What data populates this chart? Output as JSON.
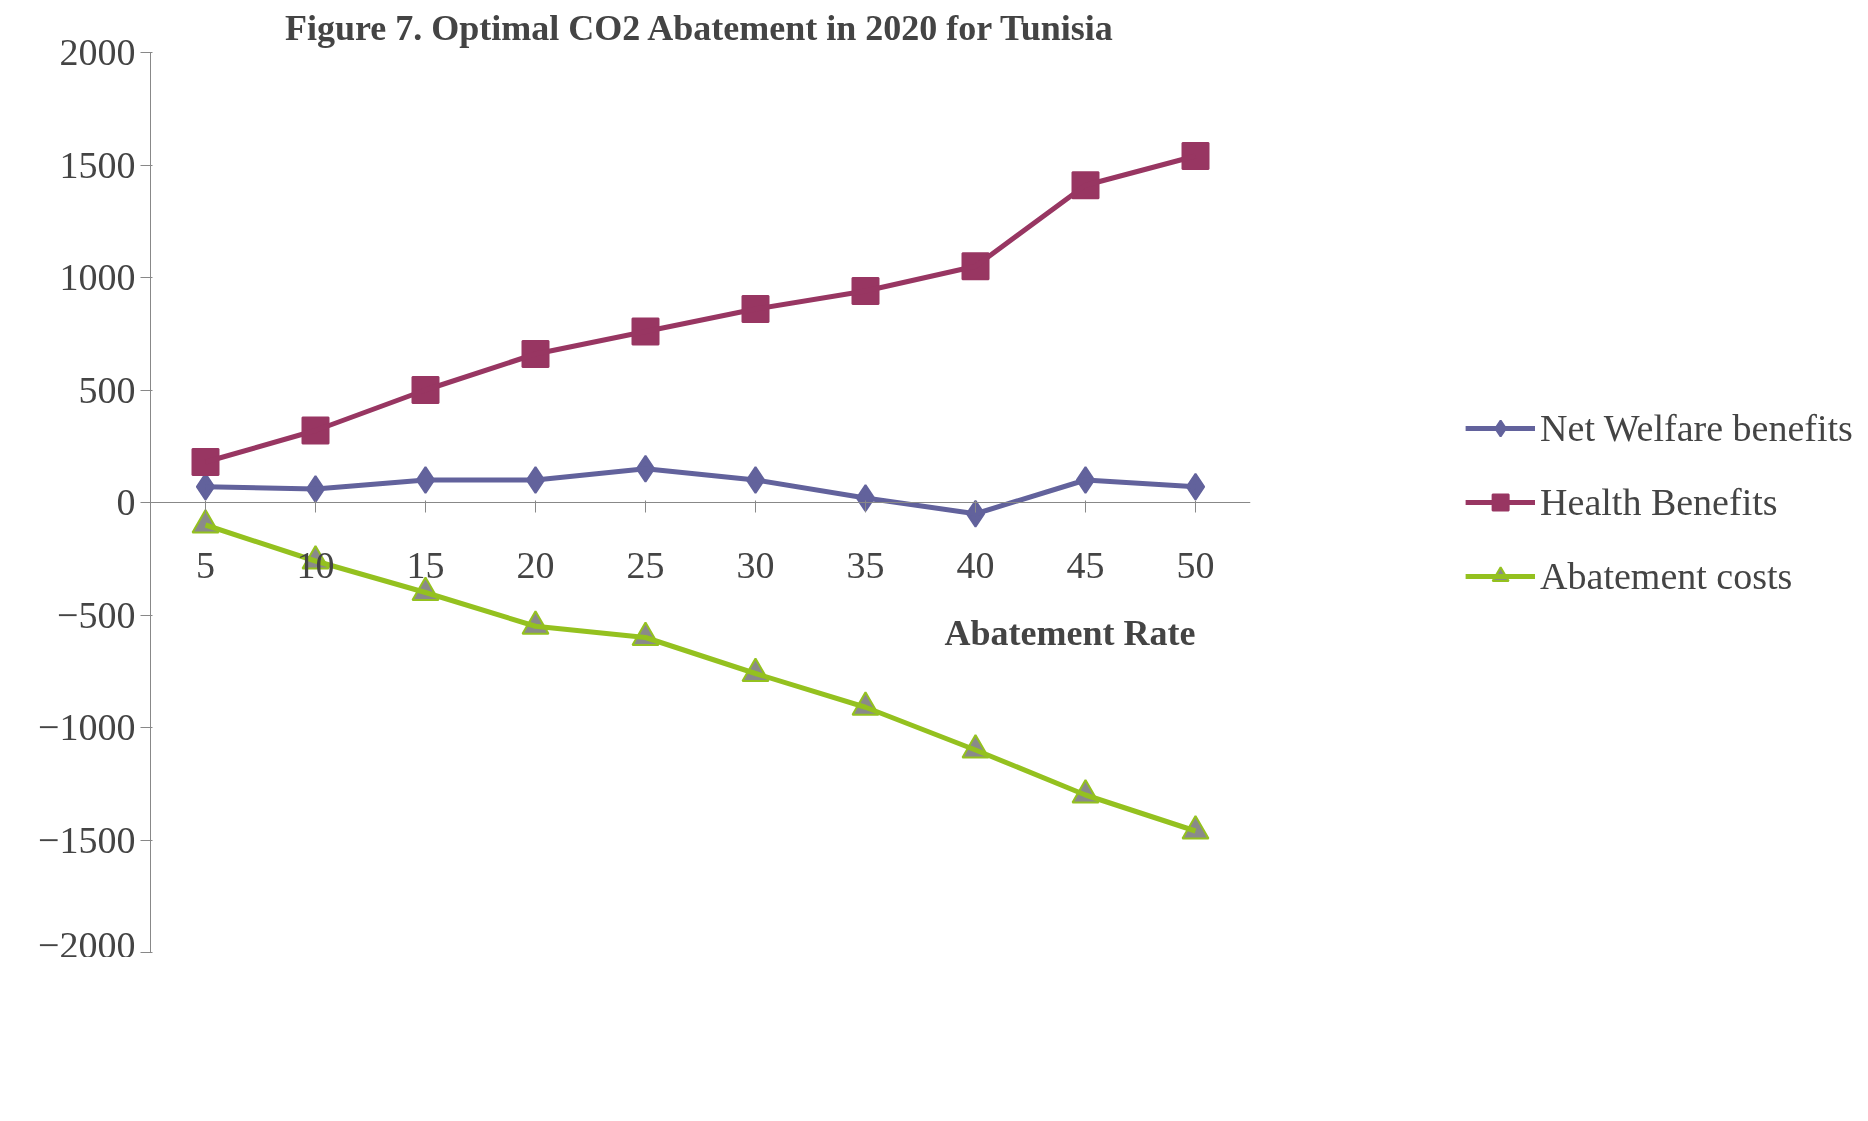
{
  "chart_data": {
    "type": "line",
    "title": "Figure 7. Optimal CO2 Abatement in 2020 for Tunisia",
    "xlabel": "Abatement Rate",
    "categories": [
      "5",
      "10",
      "15",
      "20",
      "25",
      "30",
      "35",
      "40",
      "45",
      "50"
    ],
    "series": [
      {
        "name": "Net Welfare benefits",
        "color": "#62629c",
        "marker": "diamond",
        "values": [
          70,
          60,
          100,
          100,
          150,
          100,
          20,
          -50,
          100,
          70
        ]
      },
      {
        "name": "Health Benefits",
        "color": "#983662",
        "marker": "square",
        "values": [
          180,
          320,
          500,
          660,
          760,
          860,
          940,
          1050,
          1410,
          1540
        ]
      },
      {
        "name": "Abatement costs",
        "color": "#94c11f",
        "marker": "triangle",
        "values": [
          -100,
          -260,
          -400,
          -550,
          -600,
          -760,
          -910,
          -1100,
          -1300,
          -1460
        ]
      }
    ],
    "ylim": [
      -2000,
      2000
    ],
    "yticks": [
      -2000,
      -1500,
      -1000,
      -500,
      0,
      500,
      1000,
      1500,
      2000
    ],
    "grid": false,
    "legend": "right",
    "line_style": "solid"
  }
}
